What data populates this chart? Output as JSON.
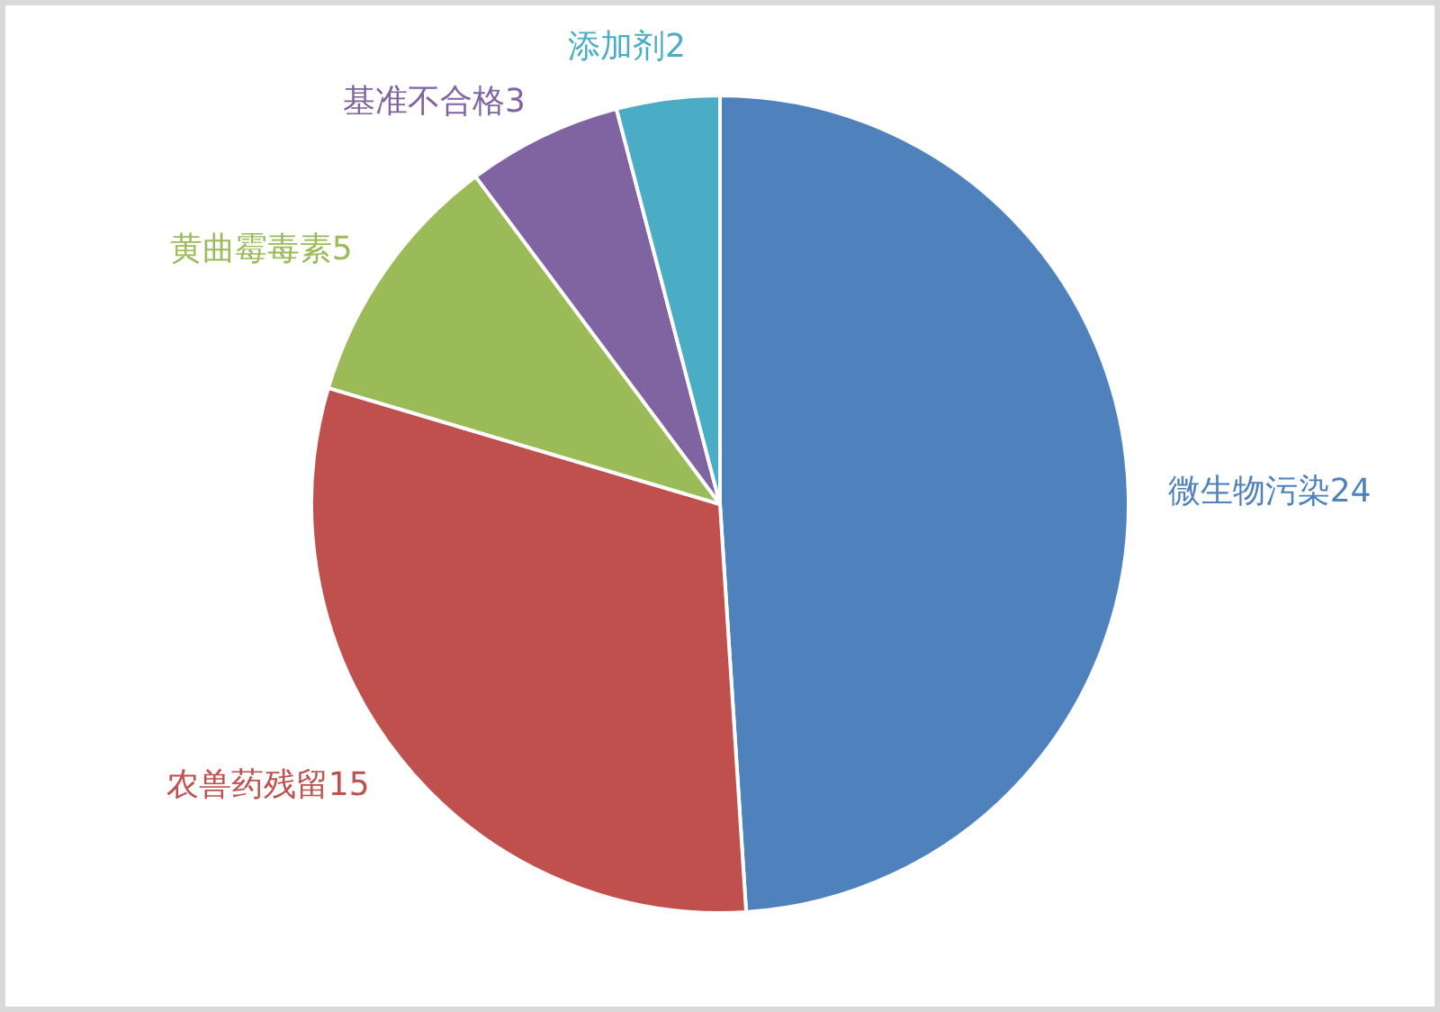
{
  "chart_data": {
    "type": "pie",
    "categories": [
      "微生物污染",
      "农兽药残留",
      "黄曲霉毒素",
      "基准不合格",
      "添加剂"
    ],
    "values": [
      24,
      15,
      5,
      3,
      2
    ],
    "colors": [
      "#4f81bd",
      "#c0504d",
      "#9bbb59",
      "#8064a2",
      "#4bacc6"
    ],
    "data_labels": true
  }
}
